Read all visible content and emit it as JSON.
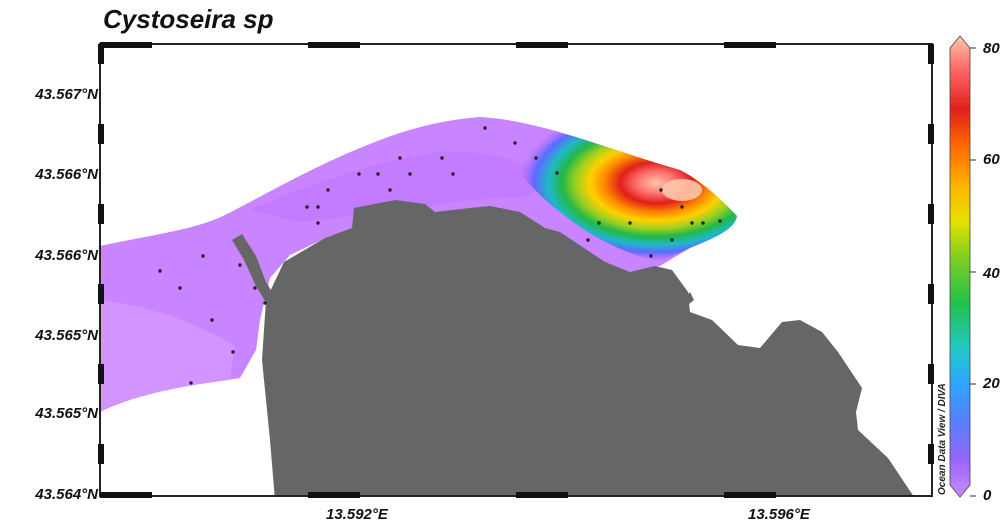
{
  "map": {
    "title": "Cystoseira sp",
    "lat_labels": [
      "43.567°N",
      "43.566°N",
      "43.566°N",
      "43.565°N",
      "43.565°N",
      "43.564°N"
    ],
    "lon_labels": [
      "13.592°E",
      "13.596°E"
    ],
    "credit": "Ocean Data View / DIVA",
    "land_color": "#666666",
    "point_color": "#222222",
    "points_visible": 34
  },
  "colorbar": {
    "labels": [
      "80",
      "60",
      "40",
      "20",
      "0"
    ],
    "min": 0,
    "max": 80,
    "colors": [
      "#c78aff",
      "#9966ff",
      "#5a7dff",
      "#2fa3ff",
      "#21c9c9",
      "#22c04a",
      "#7fd020",
      "#e8e000",
      "#ffb000",
      "#ff6a00",
      "#e0201a",
      "#ff6a6a",
      "#ffc8a8"
    ]
  }
}
